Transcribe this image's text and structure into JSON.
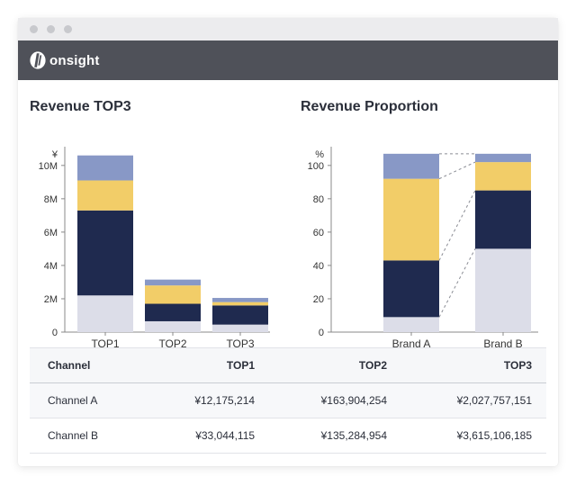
{
  "app": {
    "logo_text": "onsight",
    "logo_icon": "onsight-logo-icon"
  },
  "colors": {
    "appbar": "#4f5159",
    "segment_light": "#dcdde8",
    "segment_navy": "#1f2a4f",
    "segment_yellow": "#f2cd68",
    "segment_blue": "#8898c6"
  },
  "chart_data": [
    {
      "type": "bar",
      "stacked": true,
      "title": "Revenue TOP3",
      "ylabel": "¥",
      "categories": [
        "TOP1",
        "TOP2",
        "TOP3"
      ],
      "yticks": [
        "0",
        "2M",
        "4M",
        "6M",
        "8M",
        "10M"
      ],
      "ylim": [
        0,
        10800000
      ],
      "series": [
        {
          "values": [
            2200000,
            650000,
            450000
          ]
        },
        {
          "values": [
            5100000,
            1050000,
            1150000
          ]
        },
        {
          "values": [
            1800000,
            1100000,
            200000
          ]
        },
        {
          "values": [
            1500000,
            350000,
            250000
          ]
        }
      ]
    },
    {
      "type": "bar",
      "stacked": true,
      "percent": true,
      "title": "Revenue Proportion",
      "ylabel": "%",
      "categories": [
        "Brand A",
        "Brand B"
      ],
      "yticks": [
        "0",
        "20",
        "40",
        "60",
        "80",
        "100"
      ],
      "ylim": [
        0,
        108
      ],
      "series": [
        {
          "values": [
            9,
            50
          ]
        },
        {
          "values": [
            34,
            35
          ]
        },
        {
          "values": [
            49,
            17
          ]
        },
        {
          "values": [
            15,
            5
          ]
        }
      ]
    }
  ],
  "table": {
    "headers": [
      "Channel",
      "TOP1",
      "TOP2",
      "TOP3"
    ],
    "rows": [
      [
        "Channel A",
        "¥12,175,214",
        "¥163,904,254",
        "¥2,027,757,151"
      ],
      [
        "Channel B",
        "¥33,044,115",
        "¥135,284,954",
        "¥3,615,106,185"
      ]
    ]
  }
}
